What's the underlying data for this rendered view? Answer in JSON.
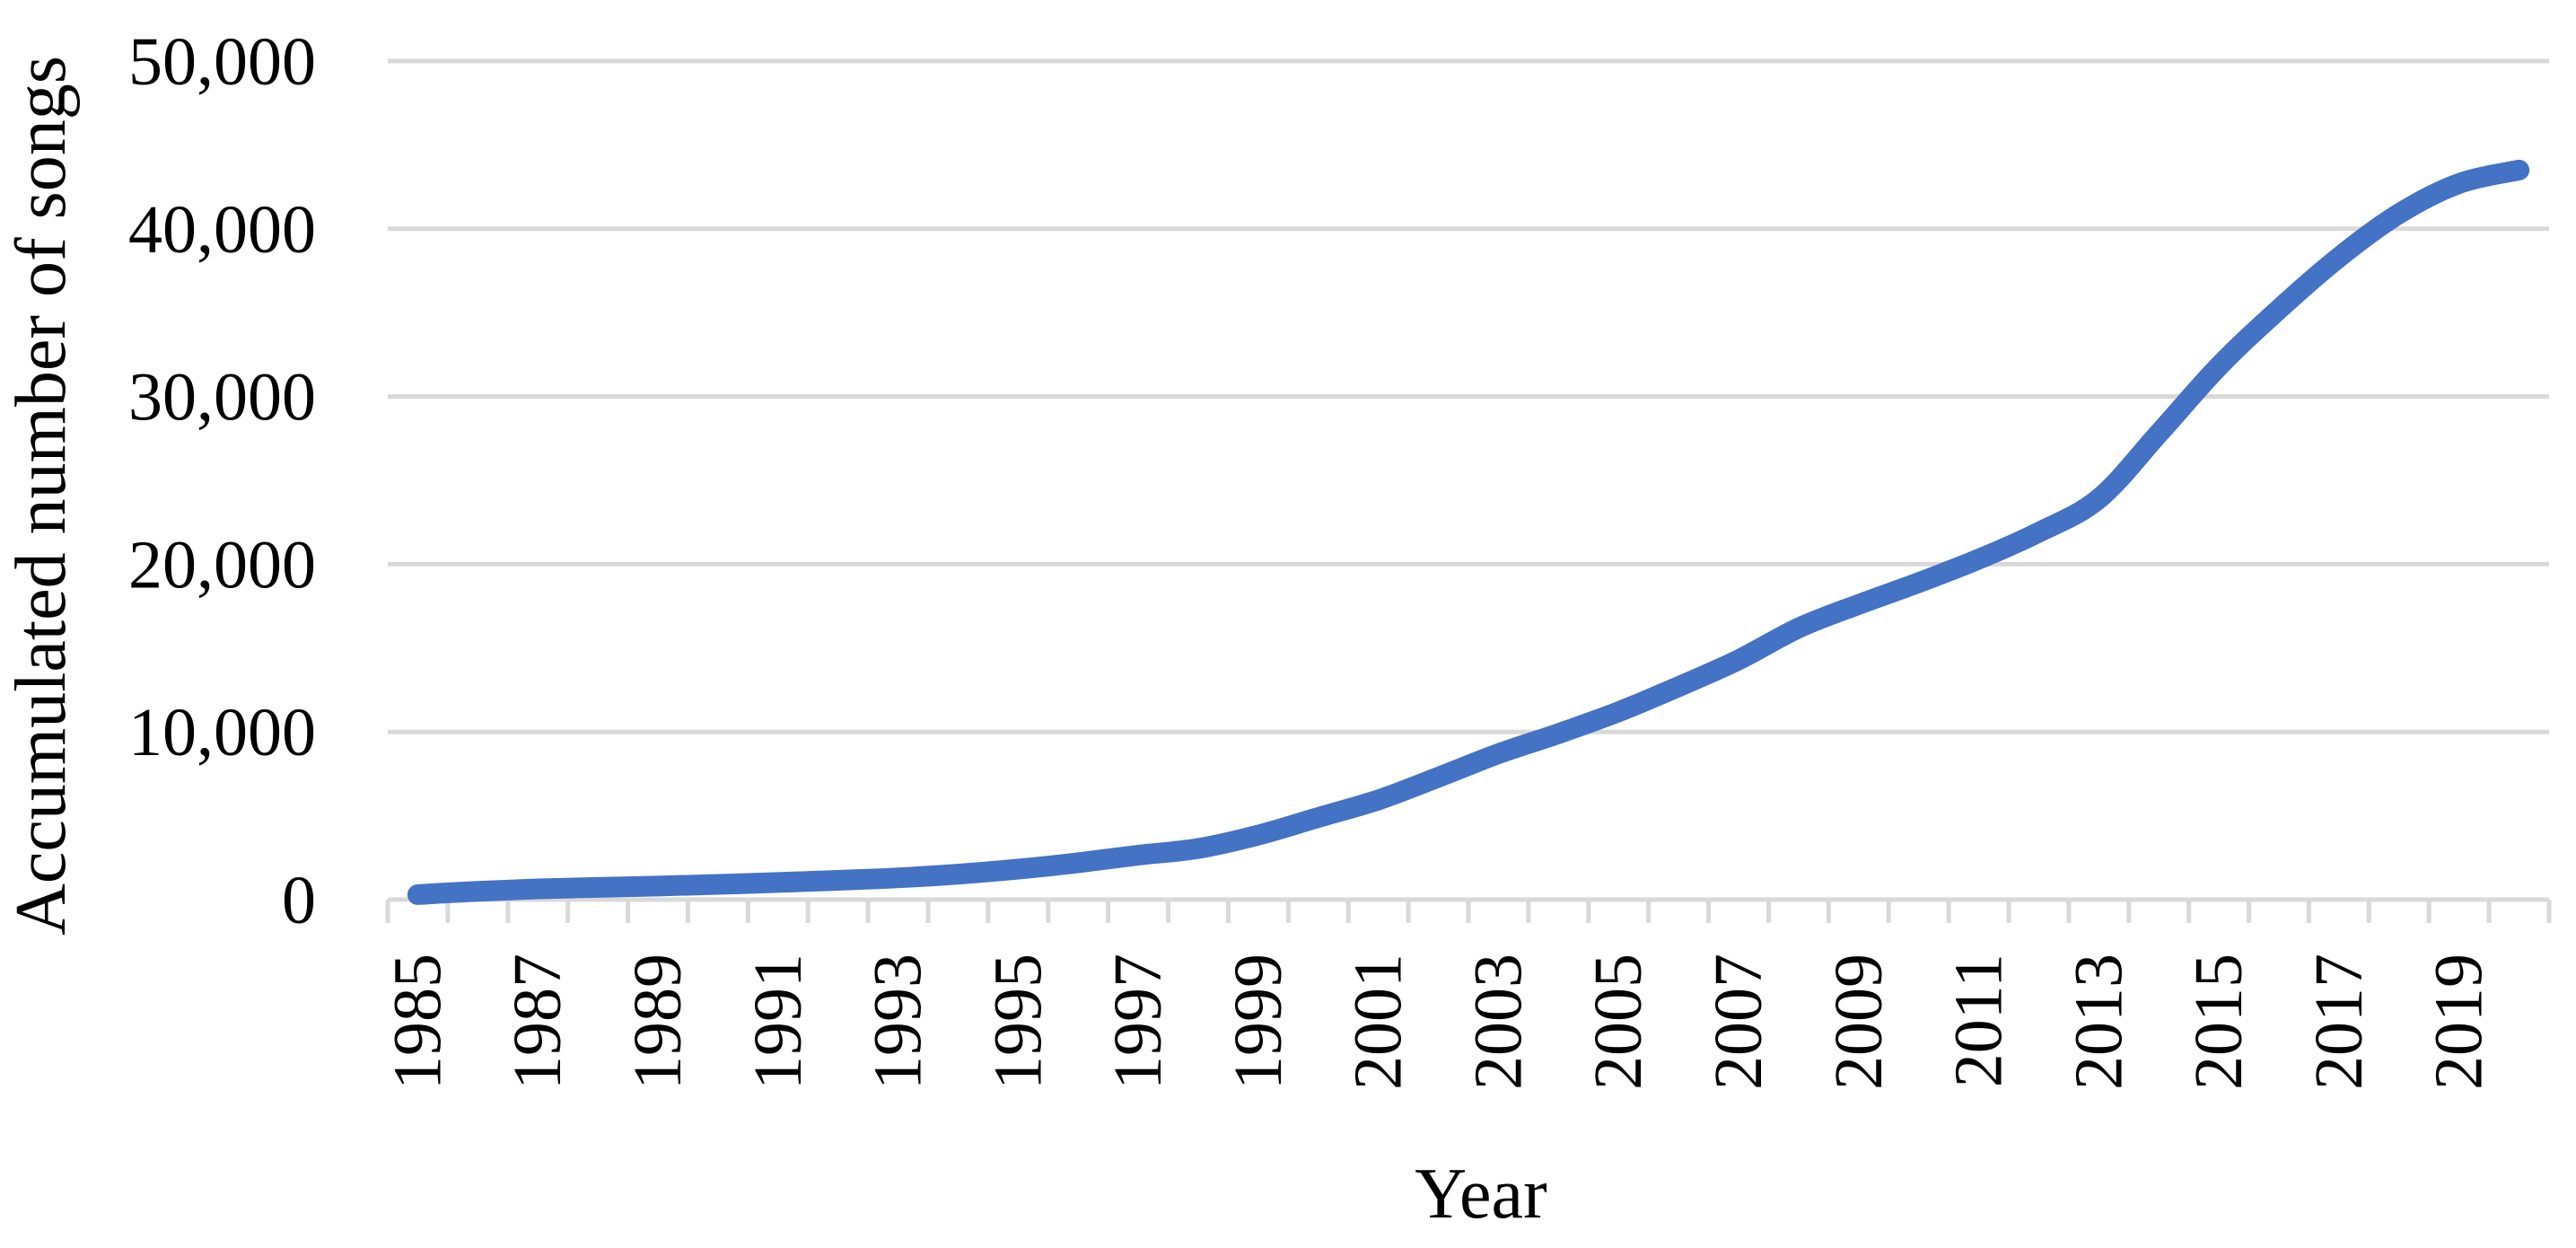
{
  "chart_data": {
    "type": "line",
    "title": "",
    "xlabel": "Year",
    "ylabel": "Accumulated number of songs",
    "x": [
      1985,
      1986,
      1987,
      1988,
      1989,
      1990,
      1991,
      1992,
      1993,
      1994,
      1995,
      1996,
      1997,
      1998,
      1999,
      2000,
      2001,
      2002,
      2003,
      2004,
      2005,
      2006,
      2007,
      2008,
      2009,
      2010,
      2011,
      2012,
      2013,
      2014,
      2015,
      2016,
      2017,
      2018,
      2019,
      2020
    ],
    "series": [
      {
        "name": "Accumulated number of songs",
        "values": [
          300,
          500,
          640,
          730,
          810,
          910,
          1020,
          1150,
          1300,
          1520,
          1820,
          2200,
          2650,
          3050,
          3850,
          4900,
          5950,
          7300,
          8700,
          9900,
          11200,
          12700,
          14300,
          16200,
          17600,
          18900,
          20300,
          21900,
          23900,
          27800,
          31800,
          35200,
          38300,
          40900,
          42700,
          43500
        ]
      }
    ],
    "ylim": [
      0,
      50000
    ],
    "ytick_values": [
      0,
      10000,
      20000,
      30000,
      40000,
      50000
    ],
    "ytick_labels": [
      "0",
      "10,000",
      "20,000",
      "30,000",
      "40,000",
      "50,000"
    ],
    "xtick_years": [
      1985,
      1987,
      1989,
      1991,
      1993,
      1995,
      1997,
      1999,
      2001,
      2003,
      2005,
      2007,
      2009,
      2011,
      2013,
      2015,
      2017,
      2019
    ],
    "xtick_labels": [
      "1985",
      "1987",
      "1989",
      "1991",
      "1993",
      "1995",
      "1997",
      "1999",
      "2001",
      "2003",
      "2005",
      "2007",
      "2009",
      "2011",
      "2013",
      "2015",
      "2017",
      "2019"
    ],
    "grid": "horizontal",
    "legend": "none",
    "line_color": "#4472C4",
    "gridline_color": "#D9D9D9",
    "text_color": "#000000",
    "line_width": 23,
    "smooth": true
  }
}
